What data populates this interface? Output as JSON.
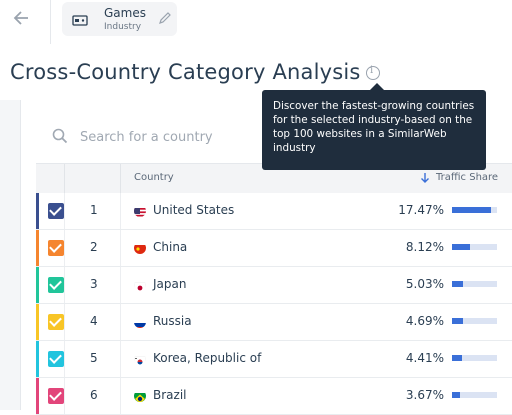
{
  "header": {
    "chip_title": "Games",
    "chip_subtitle": "Industry"
  },
  "page_title": "Cross-Country Category Analysis",
  "tooltip": "Discover the fastest-growing countries for the selected industry-based on the top 100 websites in a SimilarWeb industry",
  "search": {
    "placeholder": "Search for a country"
  },
  "table": {
    "columns": {
      "country": "Country",
      "traffic_share": "Traffic Share"
    },
    "rows": [
      {
        "rank": "1",
        "country": "United States",
        "share": "17.47%",
        "share_value": 17.47,
        "color": "#3a4f8f",
        "flag": "us"
      },
      {
        "rank": "2",
        "country": "China",
        "share": "8.12%",
        "share_value": 8.12,
        "color": "#f5852f",
        "flag": "cn"
      },
      {
        "rank": "3",
        "country": "Japan",
        "share": "5.03%",
        "share_value": 5.03,
        "color": "#21c59a",
        "flag": "jp"
      },
      {
        "rank": "4",
        "country": "Russia",
        "share": "4.69%",
        "share_value": 4.69,
        "color": "#f8c526",
        "flag": "ru"
      },
      {
        "rank": "5",
        "country": "Korea, Republic of",
        "share": "4.41%",
        "share_value": 4.41,
        "color": "#22c4de",
        "flag": "kr"
      },
      {
        "rank": "6",
        "country": "Brazil",
        "share": "3.67%",
        "share_value": 3.67,
        "color": "#e2457a",
        "flag": "br"
      }
    ]
  }
}
